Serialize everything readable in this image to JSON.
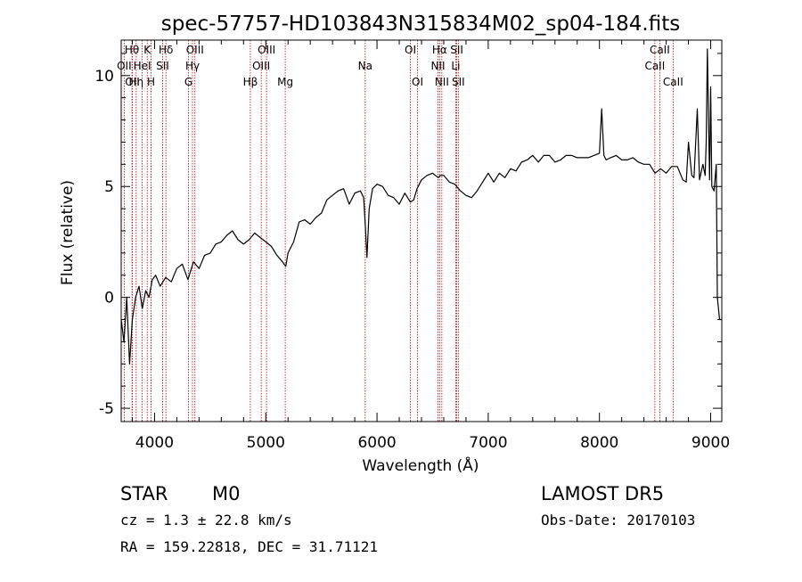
{
  "chart_data": {
    "type": "line",
    "title": "spec-57757-HD103843N315834M02_sp04-184.fits",
    "xlabel": "Wavelength (Å)",
    "ylabel": "Flux (relative)",
    "xlim": [
      3700,
      9100
    ],
    "ylim": [
      -5.6,
      11.6
    ],
    "xticks": [
      4000,
      5000,
      6000,
      7000,
      8000,
      9000
    ],
    "yticks": [
      -5,
      0,
      5,
      10
    ],
    "grid": false,
    "series": [
      {
        "x": [
          3700,
          3725,
          3750,
          3775,
          3800,
          3830,
          3860,
          3890,
          3920,
          3950,
          3980,
          4010,
          4050,
          4100,
          4150,
          4200,
          4250,
          4300,
          4350,
          4400,
          4450,
          4500,
          4550,
          4600,
          4650,
          4700,
          4750,
          4800,
          4850,
          4900,
          4950,
          5000,
          5050,
          5100,
          5150,
          5180,
          5200,
          5250,
          5300,
          5350,
          5400,
          5450,
          5500,
          5550,
          5600,
          5650,
          5700,
          5750,
          5800,
          5850,
          5880,
          5895,
          5910,
          5930,
          5960,
          6000,
          6050,
          6100,
          6150,
          6200,
          6250,
          6300,
          6330,
          6360,
          6400,
          6450,
          6500,
          6550,
          6570,
          6600,
          6650,
          6700,
          6750,
          6800,
          6850,
          6900,
          6950,
          7000,
          7050,
          7100,
          7150,
          7200,
          7250,
          7300,
          7350,
          7400,
          7450,
          7500,
          7550,
          7600,
          7650,
          7700,
          7750,
          7800,
          7850,
          7900,
          7950,
          8000,
          8020,
          8040,
          8060,
          8100,
          8150,
          8200,
          8250,
          8300,
          8350,
          8400,
          8450,
          8500,
          8550,
          8600,
          8650,
          8700,
          8750,
          8780,
          8800,
          8830,
          8850,
          8880,
          8900,
          8930,
          8950,
          8960,
          8970,
          8990,
          9000,
          9010,
          9030,
          9050,
          9060,
          9080,
          9100
        ],
        "y": [
          -1,
          -2,
          0,
          -3,
          -1,
          0,
          0.5,
          -0.5,
          0.3,
          0,
          0.8,
          1,
          0.5,
          0.9,
          0.7,
          1.3,
          1.5,
          0.8,
          1.6,
          1.3,
          1.9,
          2,
          2.4,
          2.5,
          2.8,
          3,
          2.6,
          2.4,
          2.6,
          2.9,
          2.7,
          2.5,
          2.3,
          1.9,
          1.6,
          1.4,
          2,
          2.5,
          3.4,
          3.5,
          3.3,
          3.6,
          3.8,
          4.4,
          4.6,
          4.8,
          4.9,
          4.2,
          4.7,
          4.8,
          4.5,
          3.2,
          1.8,
          4,
          4.9,
          5.1,
          5,
          4.6,
          4.5,
          4.2,
          4.7,
          4.3,
          4.4,
          4.9,
          5.3,
          5.5,
          5.6,
          5.4,
          5.5,
          5.5,
          5.2,
          5.1,
          4.8,
          4.6,
          4.5,
          4.8,
          5.2,
          5.6,
          5.2,
          5.6,
          5.4,
          5.8,
          5.7,
          6.1,
          6.2,
          6.4,
          6.1,
          6.4,
          6.4,
          6.1,
          6.2,
          6.4,
          6.4,
          6.3,
          6.3,
          6.3,
          6.4,
          6.5,
          8.5,
          6.4,
          6.2,
          6.3,
          6.4,
          6.2,
          6.2,
          6.3,
          6.1,
          6,
          6,
          5.6,
          5.8,
          5.6,
          5.9,
          5.9,
          5.3,
          5.2,
          7,
          5.5,
          5.4,
          8.5,
          5.3,
          6,
          5.5,
          7,
          11.2,
          5.3,
          9.5,
          5,
          4.8,
          6,
          0,
          -1,
          -1
        ]
      }
    ],
    "line_markers": [
      {
        "label": "OII",
        "x": 3727,
        "row": 1
      },
      {
        "label": "Hθ",
        "x": 3797,
        "row": 0
      },
      {
        "label": "OII",
        "x": 3800,
        "row": 2
      },
      {
        "label": "Hη",
        "x": 3835,
        "row": 2
      },
      {
        "label": "HeI",
        "x": 3889,
        "row": 1
      },
      {
        "label": "K",
        "x": 3934,
        "row": 0
      },
      {
        "label": "H",
        "x": 3969,
        "row": 2
      },
      {
        "label": "SII",
        "x": 4072,
        "row": 1
      },
      {
        "label": "Hδ",
        "x": 4102,
        "row": 0
      },
      {
        "label": "G",
        "x": 4305,
        "row": 2
      },
      {
        "label": "Hγ",
        "x": 4341,
        "row": 1
      },
      {
        "label": "OIII",
        "x": 4363,
        "row": 0
      },
      {
        "label": "Hβ",
        "x": 4861,
        "row": 2
      },
      {
        "label": "OIII",
        "x": 4959,
        "row": 1
      },
      {
        "label": "OIII",
        "x": 5007,
        "row": 0
      },
      {
        "label": "Mg",
        "x": 5175,
        "row": 2
      },
      {
        "label": "Na",
        "x": 5894,
        "row": 1
      },
      {
        "label": "OI",
        "x": 6300,
        "row": 0
      },
      {
        "label": "OI",
        "x": 6364,
        "row": 2
      },
      {
        "label": "NII",
        "x": 6548,
        "row": 1
      },
      {
        "label": "Hα",
        "x": 6563,
        "row": 0
      },
      {
        "label": "NII",
        "x": 6583,
        "row": 2
      },
      {
        "label": "Li",
        "x": 6708,
        "row": 1
      },
      {
        "label": "SII",
        "x": 6717,
        "row": 0
      },
      {
        "label": "SII",
        "x": 6731,
        "row": 2
      },
      {
        "label": "CaII",
        "x": 8498,
        "row": 1
      },
      {
        "label": "CaII",
        "x": 8542,
        "row": 0
      },
      {
        "label": "CaII",
        "x": 8662,
        "row": 2
      }
    ]
  },
  "info": {
    "class": "STAR",
    "subclass": "M0",
    "survey": "LAMOST DR5",
    "cz": "cz = 1.3 ± 22.8 km/s",
    "obs_date": "Obs-Date: 20170103",
    "coords": "RA = 159.22818, DEC =  31.71121"
  }
}
